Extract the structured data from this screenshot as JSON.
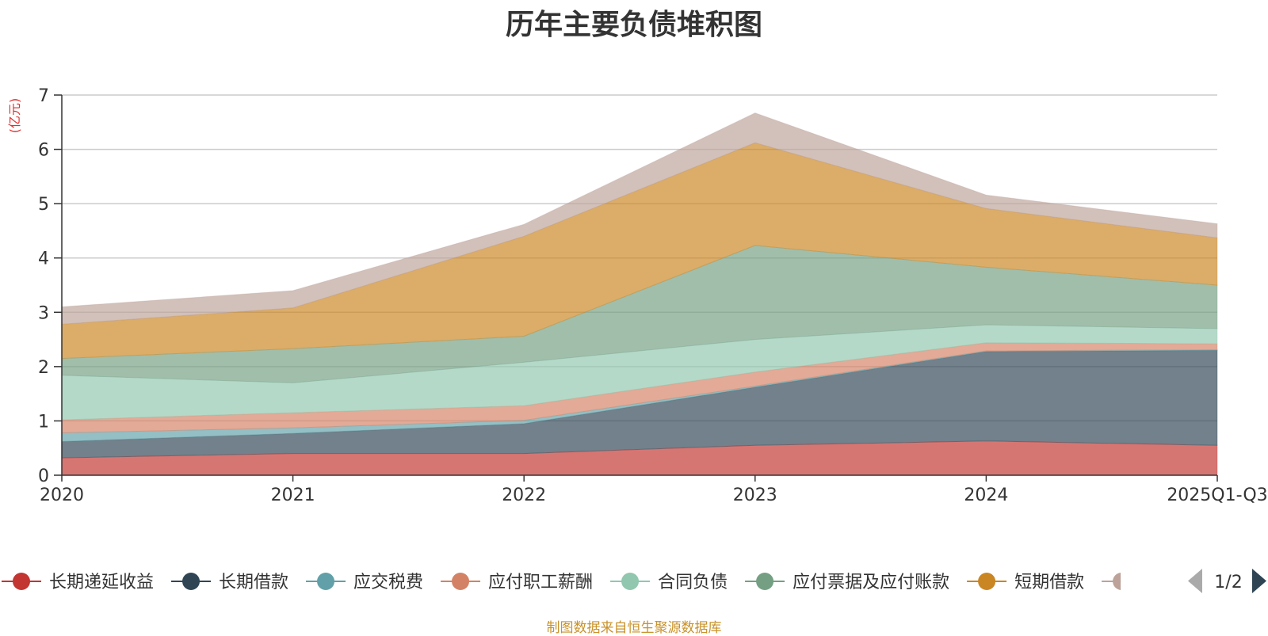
{
  "chart_data": {
    "type": "area",
    "stacked": true,
    "title": "历年主要负债堆积图",
    "ylabel": "(亿元)",
    "xlabel": "",
    "ylim": [
      0,
      7
    ],
    "yticks": [
      0,
      1,
      2,
      3,
      4,
      5,
      6,
      7
    ],
    "grid": true,
    "legend_position": "bottom",
    "categories": [
      "2020",
      "2021",
      "2022",
      "2023",
      "2024",
      "2025Q1-Q3"
    ],
    "series": [
      {
        "name": "长期递延收益",
        "color": "#c23531",
        "values": [
          0.32,
          0.4,
          0.4,
          0.55,
          0.63,
          0.55
        ]
      },
      {
        "name": "长期借款",
        "color": "#2f4554",
        "values": [
          0.3,
          0.37,
          0.55,
          1.07,
          1.65,
          1.75
        ]
      },
      {
        "name": "应交税费",
        "color": "#61a0a8",
        "values": [
          0.16,
          0.1,
          0.06,
          0.02,
          0.01,
          0.01
        ]
      },
      {
        "name": "应付职工薪酬",
        "color": "#d48265",
        "values": [
          0.24,
          0.28,
          0.27,
          0.26,
          0.15,
          0.11
        ]
      },
      {
        "name": "合同负债",
        "color": "#91c7ae",
        "values": [
          0.82,
          0.55,
          0.8,
          0.6,
          0.33,
          0.28
        ]
      },
      {
        "name": "应付票据及应付账款",
        "color": "#749f83",
        "values": [
          0.31,
          0.63,
          0.48,
          1.73,
          1.06,
          0.8
        ]
      },
      {
        "name": "短期借款",
        "color": "#ca8622",
        "values": [
          0.63,
          0.75,
          1.84,
          1.89,
          1.08,
          0.87
        ]
      },
      {
        "name": "",
        "color": "#bda29a",
        "values": [
          0.32,
          0.32,
          0.22,
          0.55,
          0.25,
          0.26
        ]
      }
    ],
    "legend_page": "1/2"
  },
  "source_note": "制图数据来自恒生聚源数据库"
}
